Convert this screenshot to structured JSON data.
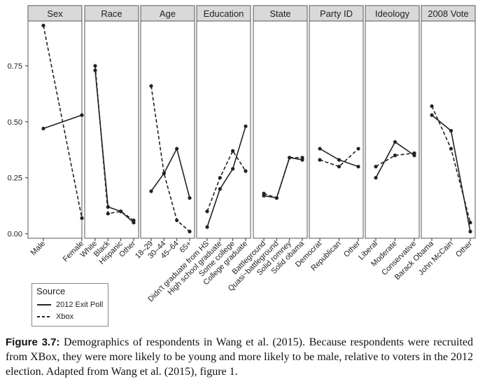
{
  "chart_data": {
    "type": "line",
    "facet_label_prefix": "",
    "y_ticks": [
      "0.00",
      "0.25",
      "0.50",
      "0.75"
    ],
    "y_tick_values": [
      0,
      0.25,
      0.5,
      0.75
    ],
    "ylim": [
      -0.02,
      0.95
    ],
    "series": [
      {
        "name": "2012 Exit Poll",
        "line_style": "solid"
      },
      {
        "name": "Xbox",
        "line_style": "dashed"
      }
    ],
    "panels": [
      {
        "title": "Sex",
        "categories": [
          "Male",
          "Female"
        ],
        "exit_poll": [
          0.47,
          0.53
        ],
        "xbox": [
          0.93,
          0.07
        ]
      },
      {
        "title": "Race",
        "categories": [
          "White",
          "Black",
          "Hispanic",
          "Other"
        ],
        "exit_poll": [
          0.73,
          0.12,
          0.1,
          0.05
        ],
        "xbox": [
          0.75,
          0.09,
          0.1,
          0.06
        ]
      },
      {
        "title": "Age",
        "categories": [
          "18–29",
          "30–44",
          "45–64",
          "65+"
        ],
        "exit_poll": [
          0.19,
          0.27,
          0.38,
          0.16
        ],
        "xbox": [
          0.66,
          0.27,
          0.06,
          0.01
        ]
      },
      {
        "title": "Education",
        "categories": [
          "Didn't graduate from HS",
          "High school graduate",
          "Some college",
          "College graduate"
        ],
        "exit_poll": [
          0.03,
          0.2,
          0.29,
          0.48
        ],
        "xbox": [
          0.1,
          0.25,
          0.37,
          0.28
        ]
      },
      {
        "title": "State",
        "categories": [
          "Battleground",
          "Quasi−battleground",
          "Solid romney",
          "Solid obama"
        ],
        "exit_poll": [
          0.17,
          0.16,
          0.34,
          0.33
        ],
        "xbox": [
          0.18,
          0.16,
          0.34,
          0.34
        ]
      },
      {
        "title": "Party ID",
        "categories": [
          "Democrat",
          "Republican",
          "Other"
        ],
        "exit_poll": [
          0.38,
          0.33,
          0.3
        ],
        "xbox": [
          0.33,
          0.3,
          0.38
        ]
      },
      {
        "title": "Ideology",
        "categories": [
          "Liberal",
          "Moderate",
          "Conservative"
        ],
        "exit_poll": [
          0.25,
          0.41,
          0.35
        ],
        "xbox": [
          0.3,
          0.35,
          0.36
        ]
      },
      {
        "title": "2008 Vote",
        "categories": [
          "Barack Obama",
          "John McCain",
          "Other"
        ],
        "exit_poll": [
          0.53,
          0.46,
          0.01
        ],
        "xbox": [
          0.57,
          0.38,
          0.05
        ]
      }
    ],
    "legend": {
      "title": "Source",
      "placement": "bottom-left"
    },
    "grid": false
  },
  "caption": {
    "label": "Figure 3.7:",
    "text": "Demographics of respondents in Wang et al. (2015). Because respondents were recruited from XBox, they were more likely to be young and more likely to be male, relative to voters in the 2012 election. Adapted from Wang et al. (2015), figure 1."
  },
  "colors": {
    "strip_bg": "#d9d9d9",
    "panel_border": "#555555",
    "line": "#222222"
  }
}
